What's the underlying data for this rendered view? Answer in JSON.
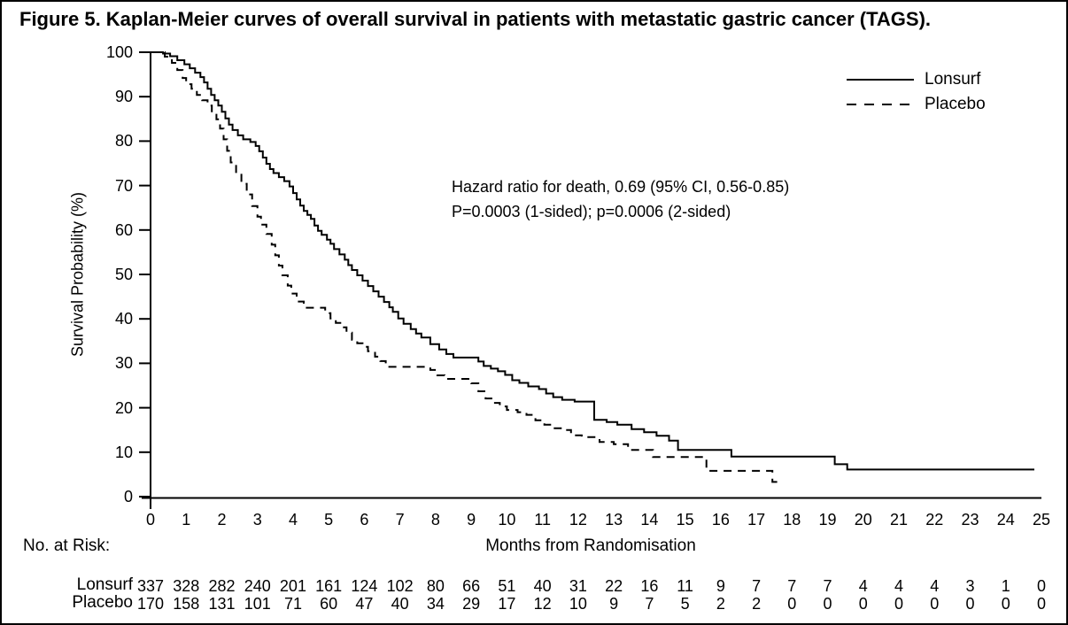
{
  "figure": {
    "title": "Figure 5. Kaplan-Meier curves of overall survival in patients with metastatic gastric cancer (TAGS).",
    "background": "#ffffff",
    "border_color": "#000000",
    "ink_color": "#000000"
  },
  "chart_data": {
    "type": "line",
    "subtype": "kaplan-meier-step",
    "title": "",
    "xlabel": "Months from Randomisation",
    "ylabel": "Survival Probability (%)",
    "xlim": [
      0,
      25
    ],
    "ylim": [
      0,
      100
    ],
    "x_ticks": [
      0,
      1,
      2,
      3,
      4,
      5,
      6,
      7,
      8,
      9,
      10,
      11,
      12,
      13,
      14,
      15,
      16,
      17,
      18,
      19,
      20,
      21,
      22,
      23,
      24,
      25
    ],
    "y_ticks": [
      0,
      10,
      20,
      30,
      40,
      50,
      60,
      70,
      80,
      90,
      100
    ],
    "grid": false,
    "legend_position": "top-right",
    "annotation": [
      "Hazard ratio for death, 0.69 (95% CI, 0.56-0.85)",
      "P=0.0003 (1-sided); p=0.0006 (2-sided)"
    ],
    "series": [
      {
        "name": "Lonsurf",
        "line_style": "solid",
        "color": "#000000",
        "points": [
          [
            0,
            100
          ],
          [
            0.35,
            99.7
          ],
          [
            0.55,
            99.1
          ],
          [
            0.75,
            98.2
          ],
          [
            0.95,
            97.3
          ],
          [
            1.1,
            96.4
          ],
          [
            1.25,
            95.4
          ],
          [
            1.4,
            94.4
          ],
          [
            1.5,
            93.2
          ],
          [
            1.6,
            91.8
          ],
          [
            1.7,
            90.4
          ],
          [
            1.8,
            89.2
          ],
          [
            1.9,
            88.0
          ],
          [
            2.0,
            86.6
          ],
          [
            2.1,
            85.1
          ],
          [
            2.2,
            83.7
          ],
          [
            2.3,
            82.5
          ],
          [
            2.45,
            81.3
          ],
          [
            2.6,
            80.4
          ],
          [
            2.8,
            79.8
          ],
          [
            2.95,
            78.9
          ],
          [
            3.05,
            77.7
          ],
          [
            3.15,
            76.3
          ],
          [
            3.25,
            74.9
          ],
          [
            3.35,
            73.7
          ],
          [
            3.45,
            72.8
          ],
          [
            3.6,
            71.9
          ],
          [
            3.75,
            71.0
          ],
          [
            3.9,
            69.8
          ],
          [
            4.0,
            68.3
          ],
          [
            4.1,
            66.9
          ],
          [
            4.2,
            65.5
          ],
          [
            4.3,
            64.3
          ],
          [
            4.4,
            63.4
          ],
          [
            4.5,
            62.5
          ],
          [
            4.6,
            61.0
          ],
          [
            4.7,
            59.8
          ],
          [
            4.8,
            58.9
          ],
          [
            4.95,
            57.8
          ],
          [
            5.05,
            56.9
          ],
          [
            5.15,
            55.7
          ],
          [
            5.3,
            54.5
          ],
          [
            5.45,
            53.3
          ],
          [
            5.55,
            52.1
          ],
          [
            5.65,
            51.0
          ],
          [
            5.8,
            49.8
          ],
          [
            5.95,
            48.6
          ],
          [
            6.1,
            47.4
          ],
          [
            6.25,
            46.2
          ],
          [
            6.4,
            45.0
          ],
          [
            6.55,
            43.8
          ],
          [
            6.7,
            42.6
          ],
          [
            6.8,
            41.6
          ],
          [
            6.95,
            40.1
          ],
          [
            7.1,
            38.9
          ],
          [
            7.3,
            37.7
          ],
          [
            7.45,
            36.7
          ],
          [
            7.6,
            35.8
          ],
          [
            7.85,
            34.3
          ],
          [
            8.1,
            33.1
          ],
          [
            8.3,
            32.1
          ],
          [
            8.5,
            31.3
          ],
          [
            9.2,
            30.4
          ],
          [
            9.35,
            29.4
          ],
          [
            9.55,
            28.8
          ],
          [
            9.75,
            28.2
          ],
          [
            9.95,
            27.4
          ],
          [
            10.15,
            26.2
          ],
          [
            10.35,
            25.6
          ],
          [
            10.6,
            24.8
          ],
          [
            10.9,
            24.2
          ],
          [
            11.1,
            23.2
          ],
          [
            11.3,
            22.4
          ],
          [
            11.55,
            21.8
          ],
          [
            11.9,
            21.4
          ],
          [
            12.45,
            17.3
          ],
          [
            12.8,
            16.8
          ],
          [
            13.1,
            16.2
          ],
          [
            13.5,
            15.2
          ],
          [
            13.85,
            14.5
          ],
          [
            14.2,
            13.7
          ],
          [
            14.55,
            12.6
          ],
          [
            14.8,
            10.5
          ],
          [
            16.3,
            9.0
          ],
          [
            19.2,
            7.3
          ],
          [
            19.55,
            6.1
          ],
          [
            24.8,
            6.1
          ]
        ]
      },
      {
        "name": "Placebo",
        "line_style": "dashed",
        "color": "#000000",
        "points": [
          [
            0,
            100
          ],
          [
            0.4,
            99.0
          ],
          [
            0.6,
            97.6
          ],
          [
            0.75,
            96.0
          ],
          [
            0.9,
            94.2
          ],
          [
            1.0,
            92.8
          ],
          [
            1.15,
            91.8
          ],
          [
            1.3,
            90.4
          ],
          [
            1.45,
            89.2
          ],
          [
            1.6,
            88.0
          ],
          [
            1.72,
            86.5
          ],
          [
            1.85,
            84.9
          ],
          [
            1.95,
            82.8
          ],
          [
            2.05,
            80.4
          ],
          [
            2.15,
            77.8
          ],
          [
            2.25,
            75.2
          ],
          [
            2.4,
            72.8
          ],
          [
            2.55,
            70.4
          ],
          [
            2.7,
            68.0
          ],
          [
            2.85,
            65.4
          ],
          [
            3.0,
            63.0
          ],
          [
            3.1,
            61.2
          ],
          [
            3.25,
            59.1
          ],
          [
            3.4,
            56.7
          ],
          [
            3.5,
            54.3
          ],
          [
            3.6,
            52.0
          ],
          [
            3.7,
            49.8
          ],
          [
            3.85,
            47.5
          ],
          [
            3.95,
            45.7
          ],
          [
            4.1,
            43.9
          ],
          [
            4.3,
            42.5
          ],
          [
            4.9,
            41.3
          ],
          [
            5.05,
            40.1
          ],
          [
            5.2,
            39.1
          ],
          [
            5.35,
            38.1
          ],
          [
            5.5,
            36.9
          ],
          [
            5.65,
            35.3
          ],
          [
            5.8,
            34.5
          ],
          [
            5.95,
            33.7
          ],
          [
            6.1,
            32.7
          ],
          [
            6.3,
            31.5
          ],
          [
            6.45,
            30.5
          ],
          [
            6.6,
            29.2
          ],
          [
            7.85,
            28.5
          ],
          [
            8.05,
            27.3
          ],
          [
            8.25,
            26.5
          ],
          [
            9.0,
            25.5
          ],
          [
            9.2,
            23.7
          ],
          [
            9.4,
            22.1
          ],
          [
            9.6,
            21.1
          ],
          [
            9.8,
            20.3
          ],
          [
            10.0,
            19.5
          ],
          [
            10.3,
            19.0
          ],
          [
            10.55,
            18.4
          ],
          [
            10.8,
            17.2
          ],
          [
            11.05,
            16.2
          ],
          [
            11.3,
            15.4
          ],
          [
            11.55,
            15.0
          ],
          [
            11.8,
            13.8
          ],
          [
            12.1,
            13.4
          ],
          [
            12.6,
            12.3
          ],
          [
            13.0,
            11.8
          ],
          [
            13.4,
            10.5
          ],
          [
            14.1,
            8.9
          ],
          [
            15.6,
            5.8
          ],
          [
            17.45,
            3.3
          ],
          [
            17.7,
            3.3
          ]
        ]
      }
    ]
  },
  "risk_table": {
    "heading": "No. at Risk:",
    "months": [
      0,
      1,
      2,
      3,
      4,
      5,
      6,
      7,
      8,
      9,
      10,
      11,
      12,
      13,
      14,
      15,
      16,
      17,
      18,
      19,
      20,
      21,
      22,
      23,
      24,
      25
    ],
    "rows": [
      {
        "label": "Lonsurf",
        "values": [
          337,
          328,
          282,
          240,
          201,
          161,
          124,
          102,
          80,
          66,
          51,
          40,
          31,
          22,
          16,
          11,
          9,
          7,
          7,
          7,
          4,
          4,
          4,
          3,
          1,
          0
        ]
      },
      {
        "label": "Placebo",
        "values": [
          170,
          158,
          131,
          101,
          71,
          60,
          47,
          40,
          34,
          29,
          17,
          12,
          10,
          9,
          7,
          5,
          2,
          2,
          0,
          0,
          0,
          0,
          0,
          0,
          0,
          0
        ]
      }
    ]
  }
}
